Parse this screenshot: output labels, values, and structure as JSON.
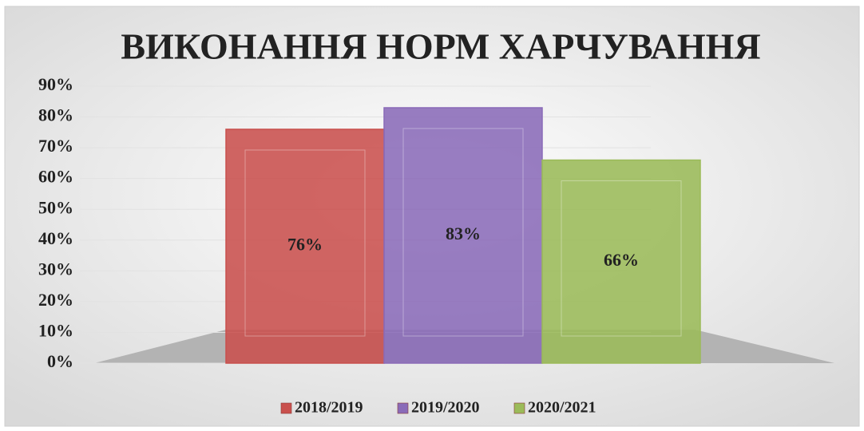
{
  "chart_data": {
    "type": "bar",
    "title": "ВИКОНАННЯ НОРМ ХАРЧУВАННЯ",
    "categories": [
      null
    ],
    "series": [
      {
        "name": "2018/2019",
        "color": "#c9504d",
        "values": [
          76
        ],
        "value_labels": [
          "76%"
        ]
      },
      {
        "name": "2019/2020",
        "color": "#8a6bb8",
        "values": [
          83
        ],
        "value_labels": [
          "83%"
        ]
      },
      {
        "name": "2020/2021",
        "color": "#9bbb59",
        "values": [
          66
        ],
        "value_labels": [
          "66%"
        ]
      }
    ],
    "ylim": [
      0,
      90
    ],
    "yticks": [
      {
        "value": 0,
        "label": "0%"
      },
      {
        "value": 10,
        "label": "10%"
      },
      {
        "value": 20,
        "label": "20%"
      },
      {
        "value": 30,
        "label": "30%"
      },
      {
        "value": 40,
        "label": "40%"
      },
      {
        "value": 50,
        "label": "50%"
      },
      {
        "value": 60,
        "label": "60%"
      },
      {
        "value": 70,
        "label": "70%"
      },
      {
        "value": 80,
        "label": "80%"
      },
      {
        "value": 90,
        "label": "90%"
      }
    ],
    "grid": true,
    "legend": "bottom"
  }
}
